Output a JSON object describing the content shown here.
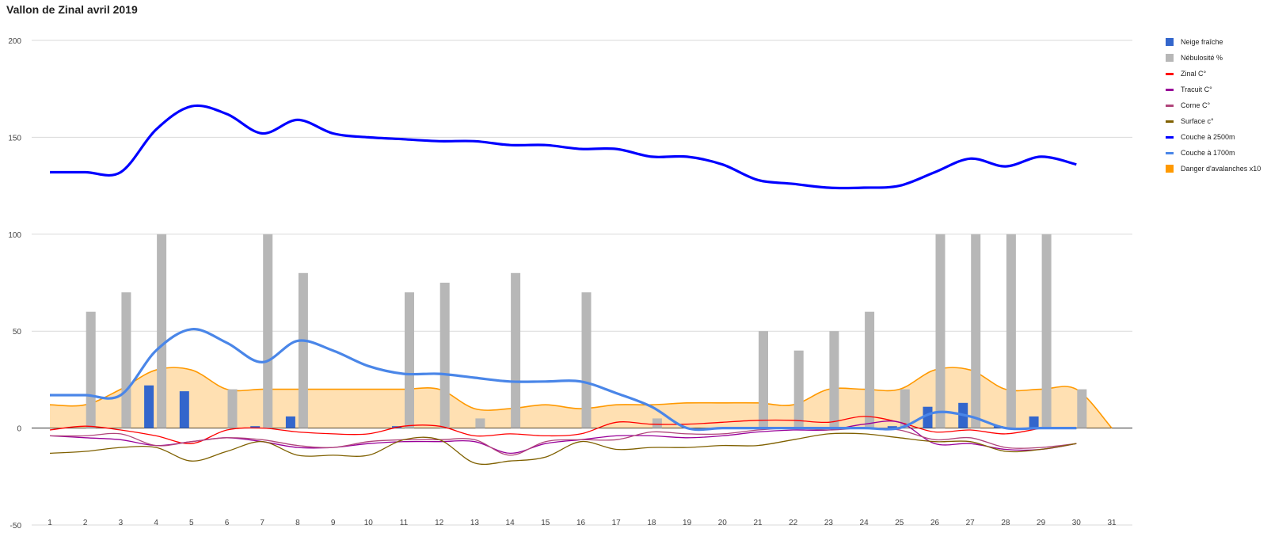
{
  "title": "Vallon de Zinal avril 2019",
  "chart_data": {
    "type": "combo",
    "title": "Vallon de Zinal avril 2019",
    "x": [
      1,
      2,
      3,
      4,
      5,
      6,
      7,
      8,
      9,
      10,
      11,
      12,
      13,
      14,
      15,
      16,
      17,
      18,
      19,
      20,
      21,
      22,
      23,
      24,
      25,
      26,
      27,
      28,
      29,
      30,
      31
    ],
    "x_tick_labels": [
      "1",
      "2",
      "3",
      "4",
      "5",
      "6",
      "7",
      "8",
      "9",
      "10",
      "11",
      "12",
      "13",
      "14",
      "15",
      "16",
      "17",
      "18",
      "19",
      "20",
      "21",
      "22",
      "23",
      "24",
      "25",
      "26",
      "27",
      "28",
      "29",
      "30",
      "31"
    ],
    "ylim": [
      -50,
      200
    ],
    "y_ticks": [
      "-50",
      "0",
      "50",
      "100",
      "150",
      "200"
    ],
    "grid": true,
    "legend_position": "right",
    "series": [
      {
        "name": "Neige fraîche",
        "kind": "bar",
        "color": "#3366CC",
        "values": [
          0,
          0,
          0,
          22,
          19,
          0,
          1,
          6,
          0,
          0,
          1,
          0,
          0,
          0,
          0,
          0,
          0,
          0,
          0,
          0,
          0,
          0,
          0,
          0,
          1,
          11,
          13,
          1,
          6,
          0,
          0
        ]
      },
      {
        "name": "Nébulosité %",
        "kind": "bar",
        "color": "#B7B7B7",
        "values": [
          0,
          60,
          70,
          100,
          0,
          20,
          100,
          80,
          0,
          0,
          70,
          75,
          5,
          80,
          0,
          70,
          0,
          5,
          0,
          0,
          50,
          40,
          50,
          60,
          20,
          100,
          100,
          100,
          100,
          20,
          0
        ]
      },
      {
        "name": "Zinal C°",
        "kind": "line",
        "color": "#FF0000",
        "values": [
          -1,
          1,
          -1,
          -4,
          -8,
          -1,
          0,
          -2,
          -3,
          -3,
          1,
          1,
          -4,
          -3,
          -4,
          -3,
          3,
          2,
          2,
          3,
          4,
          4,
          3,
          6,
          3,
          -2,
          -1,
          -3,
          0,
          null,
          null
        ]
      },
      {
        "name": "Tracuit C°",
        "kind": "line",
        "color": "#990099",
        "values": [
          -4,
          -5,
          -6,
          -9,
          -7,
          -5,
          -7,
          -10,
          -10,
          -8,
          -7,
          -7,
          -7,
          -13,
          -8,
          -6,
          -4,
          -4,
          -5,
          -4,
          -2,
          -1,
          -1,
          2,
          3,
          -8,
          -8,
          -11,
          -11,
          -8,
          null
        ]
      },
      {
        "name": "Corne C°",
        "kind": "line",
        "color": "#B0447A",
        "values": [
          -4,
          -4,
          -3,
          -9,
          -7,
          -5,
          -6,
          -9,
          -10,
          -7,
          -6,
          -6,
          -6,
          -14,
          -7,
          -6,
          -6,
          -2,
          -3,
          -3,
          -1,
          0,
          -1,
          0,
          -1,
          -6,
          -5,
          -10,
          -10,
          -8,
          null
        ]
      },
      {
        "name": "Surface c°",
        "kind": "line",
        "color": "#7F6000",
        "values": [
          -13,
          -12,
          -10,
          -10,
          -17,
          -12,
          -7,
          -14,
          -14,
          -14,
          -6,
          -6,
          -18,
          -17,
          -15,
          -7,
          -11,
          -10,
          -10,
          -9,
          -9,
          -6,
          -3,
          -3,
          -5,
          -7,
          -7,
          -12,
          -11,
          -8,
          null
        ]
      },
      {
        "name": "Couche à 2500m",
        "kind": "line",
        "color": "#0000FF",
        "values": [
          132,
          132,
          132,
          154,
          166,
          162,
          152,
          159,
          152,
          150,
          149,
          148,
          148,
          146,
          146,
          144,
          144,
          140,
          140,
          136,
          128,
          126,
          124,
          124,
          125,
          132,
          139,
          135,
          140,
          136,
          null
        ]
      },
      {
        "name": "Couche à 1700m",
        "kind": "line",
        "color": "#4A86E8",
        "values": [
          17,
          17,
          17,
          40,
          51,
          44,
          34,
          45,
          40,
          32,
          28,
          28,
          26,
          24,
          24,
          24,
          18,
          11,
          0,
          0,
          0,
          0,
          0,
          0,
          0,
          8,
          6,
          0,
          0,
          0,
          null
        ]
      },
      {
        "name": "Danger d'avalanches x10",
        "kind": "area",
        "color": "#FF9900",
        "values": [
          12,
          12,
          20,
          30,
          30,
          20,
          20,
          20,
          20,
          20,
          20,
          20,
          10,
          10,
          12,
          10,
          12,
          12,
          13,
          13,
          13,
          12,
          20,
          20,
          20,
          30,
          30,
          20,
          20,
          20,
          0
        ]
      }
    ]
  }
}
